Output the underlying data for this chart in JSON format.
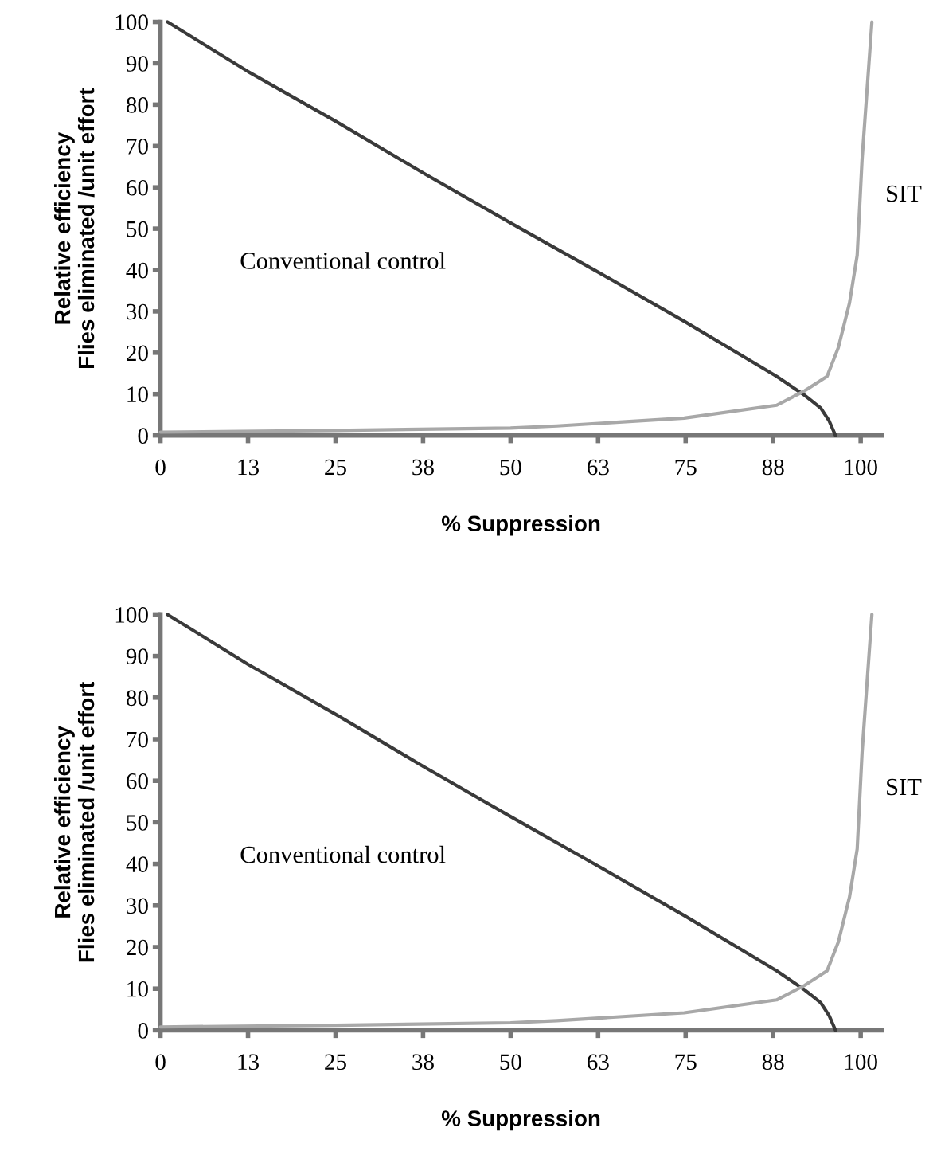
{
  "chart_data": [
    {
      "type": "line",
      "xlabel": "% Suppression",
      "ylabel": "Relative efficiency\nFlies eliminated /unit effort",
      "xlim": [
        0,
        103
      ],
      "ylim": [
        0,
        100
      ],
      "xticks": [
        0,
        {
          "value": 12.5,
          "label": "13"
        },
        25,
        {
          "value": 37.5,
          "label": "38"
        },
        50,
        {
          "value": 62.5,
          "label": "63"
        },
        75,
        {
          "value": 87.5,
          "label": "88"
        },
        100
      ],
      "yticks": [
        0,
        10,
        20,
        30,
        40,
        50,
        60,
        70,
        80,
        90,
        100
      ],
      "grid": false,
      "legend": false,
      "marker": "none",
      "line_style": "solid",
      "series": [
        {
          "name": "Conventional control",
          "color": "#3a3a3a",
          "x": [
            1,
            12.5,
            25,
            37.5,
            50,
            62.5,
            75,
            88,
            92,
            94.3,
            95.5,
            96.4
          ],
          "values": [
            100,
            88,
            76,
            63.5,
            51.4,
            39.5,
            27.4,
            14.3,
            9.7,
            6.6,
            3.5,
            0
          ]
        },
        {
          "name": "SIT",
          "color": "#a8a8a8",
          "x": [
            0,
            25,
            50,
            56.6,
            74.8,
            88,
            92,
            95.2,
            96.8,
            98.4,
            99.5,
            100.2,
            101.6
          ],
          "values": [
            0.8,
            1.2,
            1.8,
            2.3,
            4.2,
            7.3,
            10.8,
            14.3,
            21.2,
            32,
            43.6,
            66.8,
            100
          ]
        }
      ]
    },
    {
      "type": "line",
      "xlabel": "% Suppression",
      "ylabel": "Relative efficiency\nFlies eliminated /unit effort",
      "xlim": [
        0,
        103
      ],
      "ylim": [
        0,
        100
      ],
      "xticks": [
        0,
        {
          "value": 12.5,
          "label": "13"
        },
        25,
        {
          "value": 37.5,
          "label": "38"
        },
        50,
        {
          "value": 62.5,
          "label": "63"
        },
        75,
        {
          "value": 87.5,
          "label": "88"
        },
        100
      ],
      "yticks": [
        0,
        10,
        20,
        30,
        40,
        50,
        60,
        70,
        80,
        90,
        100
      ],
      "grid": false,
      "legend": false,
      "marker": "none",
      "line_style": "solid",
      "series": [
        {
          "name": "Conventional control",
          "color": "#3a3a3a",
          "x": [
            1,
            12.5,
            25,
            37.5,
            50,
            62.5,
            75,
            88,
            92,
            94.3,
            95.5,
            96.4
          ],
          "values": [
            100,
            88,
            76,
            63.5,
            51.4,
            39.5,
            27.4,
            14.3,
            9.7,
            6.6,
            3.5,
            0
          ]
        },
        {
          "name": "SIT",
          "color": "#a8a8a8",
          "x": [
            0,
            25,
            50,
            56.6,
            74.8,
            88,
            92,
            95.2,
            96.8,
            98.4,
            99.5,
            100.2,
            101.6
          ],
          "values": [
            0.8,
            1.2,
            1.8,
            2.3,
            4.2,
            7.3,
            10.8,
            14.3,
            21.2,
            32,
            43.6,
            66.8,
            100
          ]
        }
      ]
    }
  ]
}
